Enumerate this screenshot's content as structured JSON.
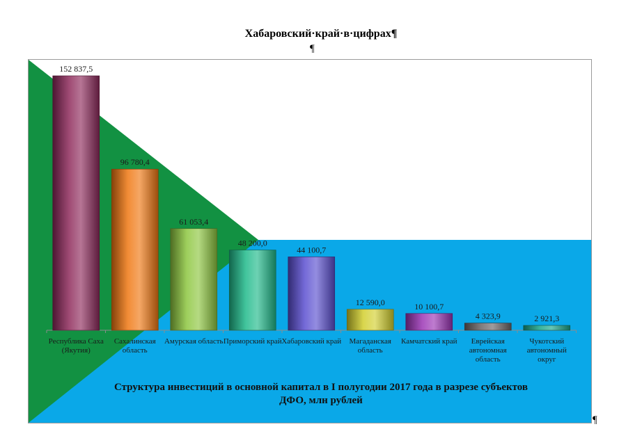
{
  "document": {
    "heading": "Хабаровский·край·в·цифрах¶",
    "marks": [
      "¶",
      "¶"
    ]
  },
  "chart_data": {
    "type": "bar",
    "title": "Структура инвестиций в основной капитал в I полугодии 2017 года в разрезе субъектов ДФО, млн рублей",
    "xlabel": "",
    "ylabel": "",
    "ylim": [
      0,
      160000
    ],
    "grid": false,
    "categories": [
      "Республика Саха (Якутия)",
      "Сахалинская область",
      "Амурская область",
      "Приморский край",
      "Хабаровский край",
      "Магаданская область",
      "Камчатский край",
      "Еврейская автономная область",
      "Чукотский автономный округ"
    ],
    "values": [
      152837.5,
      96780.4,
      61053.4,
      48200.0,
      44100.7,
      12590.0,
      10100.7,
      4323.9,
      2921.3
    ],
    "value_labels": [
      "152 837,5",
      "96 780,4",
      "61 053,4",
      "48 200,0",
      "44 100,7",
      "12 590,0",
      "10 100,7",
      "4 323,9",
      "2 921,3"
    ],
    "colors": [
      "#8e2a5c",
      "#f07812",
      "#8dc63f",
      "#1fb98a",
      "#5a4fd0",
      "#d2cf2e",
      "#9b35b5",
      "#6b6566",
      "#17a58b"
    ],
    "background_colors": {
      "triangle": "#129142",
      "band": "#0aa8e8"
    }
  }
}
